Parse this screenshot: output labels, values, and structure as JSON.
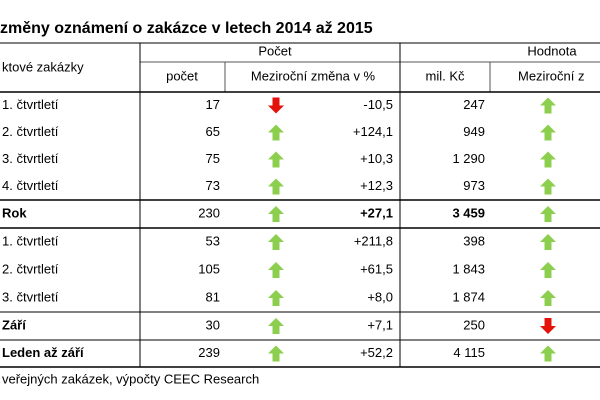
{
  "title": "změny oznámení o zakázce v letech 2014 až 2015",
  "header": {
    "label": "ktové zakázky",
    "groups": [
      "Počet",
      "Hodnota"
    ],
    "columns": [
      "počet",
      "Meziroční změna v %",
      "mil. Kč",
      "Meziroční z"
    ]
  },
  "rows": [
    {
      "label": "1. čtvrtletí",
      "count": "17",
      "count_trend": "down",
      "count_change": "-10,5",
      "value": "247",
      "value_trend": "up"
    },
    {
      "label": "2. čtvrtletí",
      "count": "65",
      "count_trend": "up",
      "count_change": "+124,1",
      "value": "949",
      "value_trend": "up"
    },
    {
      "label": "3. čtvrtletí",
      "count": "75",
      "count_trend": "up",
      "count_change": "+10,3",
      "value": "1 290",
      "value_trend": "up"
    },
    {
      "label": "4. čtvrtletí",
      "count": "73",
      "count_trend": "up",
      "count_change": "+12,3",
      "value": "973",
      "value_trend": "up"
    },
    {
      "label": "Rok",
      "count": "230",
      "count_trend": "up",
      "count_change": "+27,1",
      "value": "3 459",
      "value_trend": "up",
      "bold_label": true,
      "bold_values": true
    },
    {
      "label": "1. čtvrtletí",
      "count": "53",
      "count_trend": "up",
      "count_change": "+211,8",
      "value": "398",
      "value_trend": "up"
    },
    {
      "label": "2. čtvrtletí",
      "count": "105",
      "count_trend": "up",
      "count_change": "+61,5",
      "value": "1 843",
      "value_trend": "up"
    },
    {
      "label": "3. čtvrtletí",
      "count": "81",
      "count_trend": "up",
      "count_change": "+8,0",
      "value": "1 874",
      "value_trend": "up"
    },
    {
      "label": "Září",
      "count": "30",
      "count_trend": "up",
      "count_change": "+7,1",
      "value": "250",
      "value_trend": "down",
      "bold_label": true
    },
    {
      "label": "Leden až září",
      "count": "239",
      "count_trend": "up",
      "count_change": "+52,2",
      "value": "4 115",
      "value_trend": "up",
      "bold_label": true
    }
  ],
  "source": "veřejných zakázek, výpočty CEEC Research"
}
